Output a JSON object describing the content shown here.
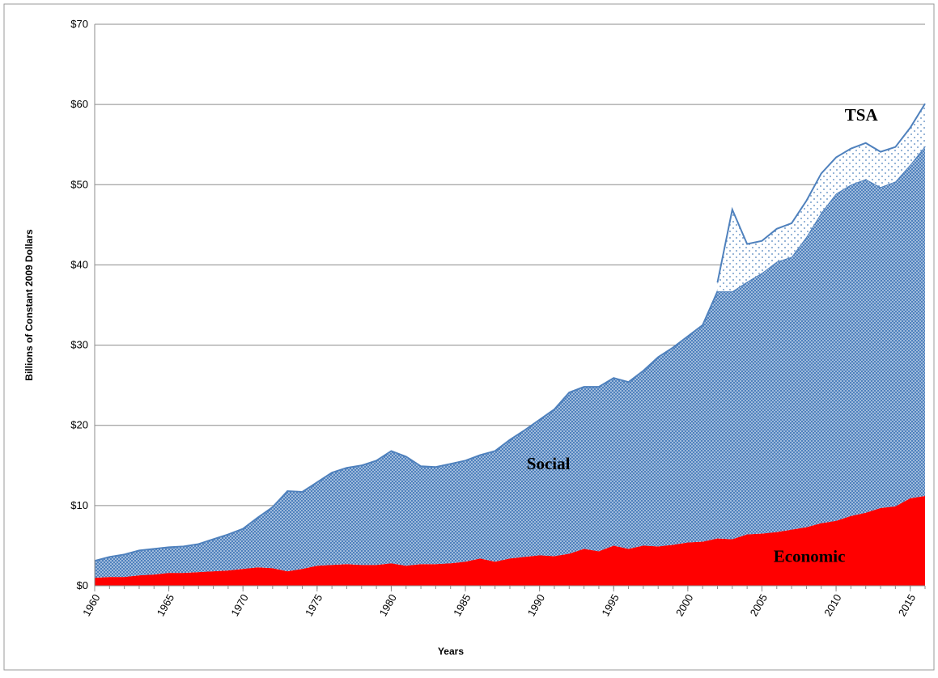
{
  "chart_data": {
    "type": "stacked_area",
    "y_label": "Billions of Constant 2009  Dollars",
    "x_label": "Years",
    "x": [
      1960,
      1961,
      1962,
      1963,
      1964,
      1965,
      1966,
      1967,
      1968,
      1969,
      1970,
      1971,
      1972,
      1973,
      1974,
      1975,
      1976,
      1977,
      1978,
      1979,
      1980,
      1981,
      1982,
      1983,
      1984,
      1985,
      1986,
      1987,
      1988,
      1989,
      1990,
      1991,
      1992,
      1993,
      1994,
      1995,
      1996,
      1997,
      1998,
      1999,
      2000,
      2001,
      2002,
      2003,
      2004,
      2005,
      2006,
      2007,
      2008,
      2009,
      2010,
      2011,
      2012,
      2013,
      2014,
      2015,
      2016
    ],
    "series": [
      {
        "name": "Economic",
        "color": "#ff0000",
        "pattern": "solid",
        "values": [
          1.0,
          1.1,
          1.1,
          1.3,
          1.4,
          1.6,
          1.6,
          1.7,
          1.8,
          1.9,
          2.1,
          2.3,
          2.2,
          1.8,
          2.1,
          2.5,
          2.6,
          2.7,
          2.6,
          2.6,
          2.8,
          2.5,
          2.7,
          2.7,
          2.8,
          3.0,
          3.4,
          3.0,
          3.4,
          3.6,
          3.8,
          3.7,
          4.0,
          4.6,
          4.3,
          5.0,
          4.6,
          5.0,
          4.9,
          5.1,
          5.4,
          5.5,
          5.9,
          5.8,
          6.4,
          6.5,
          6.7,
          7.0,
          7.3,
          7.8,
          8.1,
          8.7,
          9.1,
          9.7,
          9.9,
          10.9,
          11.2
        ]
      },
      {
        "name": "Social",
        "color": "#4f81bd",
        "pattern": "dense",
        "values": [
          2.1,
          2.5,
          2.8,
          3.1,
          3.2,
          3.2,
          3.3,
          3.5,
          4.0,
          4.5,
          5.0,
          6.2,
          7.6,
          10.0,
          9.6,
          10.4,
          11.5,
          12.0,
          12.4,
          13.0,
          14.0,
          13.6,
          12.2,
          12.1,
          12.4,
          12.6,
          12.9,
          13.8,
          14.8,
          15.8,
          16.9,
          18.3,
          20.1,
          20.2,
          20.5,
          20.9,
          20.8,
          21.8,
          23.6,
          24.6,
          25.7,
          27.0,
          30.8,
          30.9,
          31.5,
          32.5,
          33.7,
          34.0,
          36.2,
          38.7,
          40.8,
          41.3,
          41.6,
          40.0,
          40.5,
          41.6,
          43.6
        ]
      },
      {
        "name": "TSA",
        "color": "#4f81bd",
        "pattern": "sparse",
        "values": [
          null,
          null,
          null,
          null,
          null,
          null,
          null,
          null,
          null,
          null,
          null,
          null,
          null,
          null,
          null,
          null,
          null,
          null,
          null,
          null,
          null,
          null,
          null,
          null,
          null,
          null,
          null,
          null,
          null,
          null,
          null,
          null,
          null,
          null,
          null,
          null,
          null,
          null,
          null,
          null,
          null,
          null,
          1.1,
          10.2,
          4.7,
          4.0,
          4.1,
          4.2,
          4.5,
          4.9,
          4.5,
          4.5,
          4.5,
          4.4,
          4.3,
          4.6,
          5.3
        ]
      }
    ],
    "xlim": [
      1960,
      2016
    ],
    "xticks": [
      1960,
      1965,
      1970,
      1975,
      1980,
      1985,
      1990,
      1995,
      2000,
      2005,
      2010,
      2015
    ],
    "ylim": [
      0,
      70
    ],
    "yticks": [
      {
        "value": 0,
        "label": "$0"
      },
      {
        "value": 10,
        "label": "$10"
      },
      {
        "value": 20,
        "label": "$20"
      },
      {
        "value": 30,
        "label": "$30"
      },
      {
        "value": 40,
        "label": "$40"
      },
      {
        "value": 50,
        "label": "$50"
      },
      {
        "value": 60,
        "label": "$60"
      },
      {
        "value": 70,
        "label": "$70"
      }
    ],
    "grid": true
  }
}
